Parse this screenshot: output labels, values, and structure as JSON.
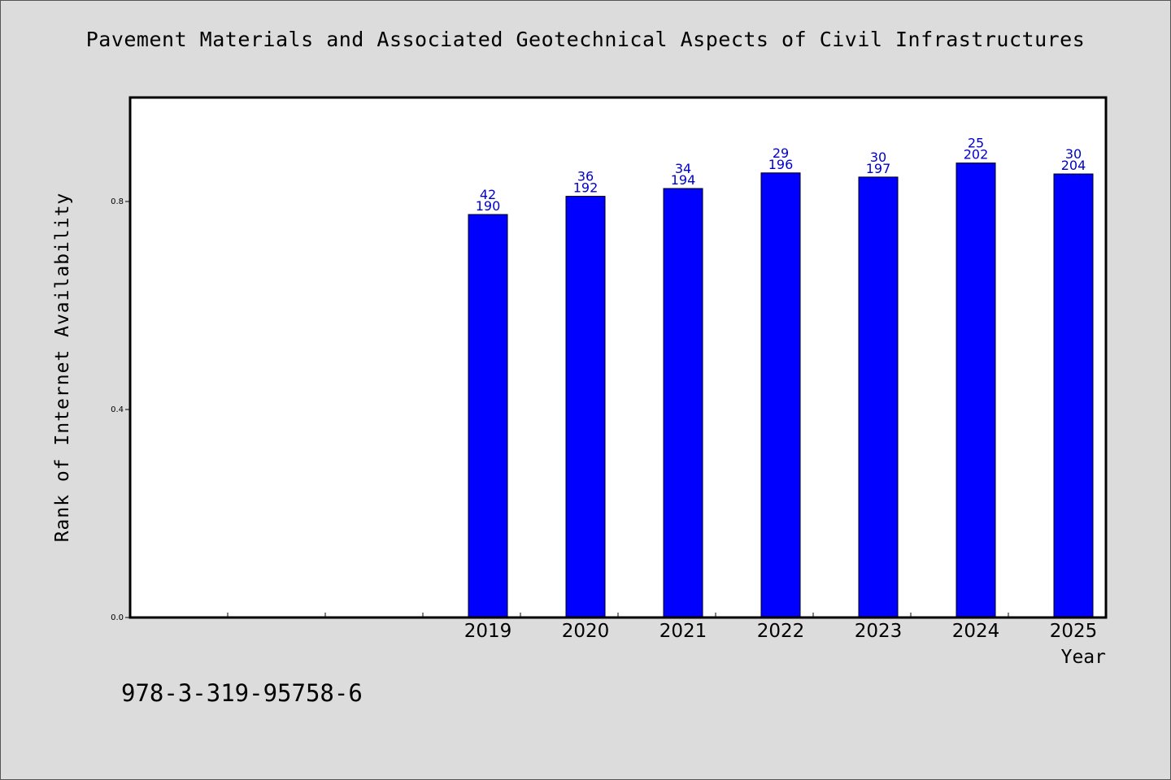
{
  "colors": {
    "background": "#dcdcdc",
    "plot_background": "#ffffff",
    "bar_fill": "#0000ff",
    "label_color": "#0000cc"
  },
  "chart_data": {
    "type": "bar",
    "title": "Pavement Materials and Associated Geotechnical Aspects of Civil Infrastructures",
    "xlabel": "Year",
    "ylabel": "Rank of Internet Availability",
    "categories": [
      "",
      "",
      "",
      "2019",
      "2020",
      "2021",
      "2022",
      "2023",
      "2024",
      "2025"
    ],
    "values": [
      null,
      null,
      null,
      0.775,
      0.81,
      0.825,
      0.855,
      0.847,
      0.874,
      0.853
    ],
    "label_top": [
      "",
      "",
      "",
      "42",
      "36",
      "34",
      "29",
      "30",
      "25",
      "30"
    ],
    "label_bottom": [
      "",
      "",
      "",
      "190",
      "192",
      "194",
      "196",
      "197",
      "202",
      "204"
    ],
    "ylim": [
      0.0,
      1.0
    ],
    "yticks": [
      0.0,
      0.4,
      0.8
    ],
    "ytick_labels": [
      "0.0",
      "0.4",
      "0.8"
    ],
    "grid": false,
    "legend": "none"
  },
  "footnote": "978-3-319-95758-6"
}
